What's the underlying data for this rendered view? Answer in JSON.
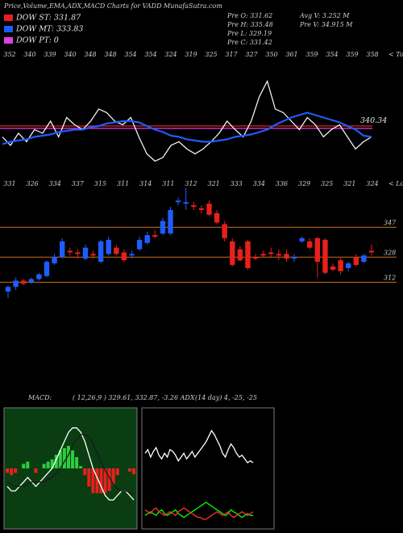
{
  "header": {
    "title": "Price,Volume,EMA,ADX,MACD Charts for VADD MunafaSutra.com",
    "legend": [
      {
        "label": "DOW ST: 331.87",
        "color": "#e8201c"
      },
      {
        "label": "DOW MT: 333.83",
        "color": "#1f5cff"
      },
      {
        "label": "DOW PT: 0",
        "color": "#e040e0"
      }
    ],
    "stats_left": [
      "Pre O: 331.62",
      "Pre H: 335.48",
      "Pre L: 329.19",
      "Pre C: 331.42"
    ],
    "stats_right": [
      "Avg V: 3.252 M",
      "Pre V: 34.915 M"
    ]
  },
  "chart_data": [
    {
      "type": "ema",
      "tops_label": "< Tops",
      "tops": [
        352,
        340,
        339,
        340,
        348,
        348,
        354,
        354,
        324,
        319,
        325,
        317,
        327,
        350,
        361,
        359,
        354,
        359,
        358
      ],
      "lows_label": "< Lows",
      "lows": [
        331,
        326,
        334,
        337,
        315,
        311,
        314,
        311,
        312,
        321,
        333,
        334,
        336,
        329,
        325,
        321,
        324
      ],
      "ylim": [
        300,
        380
      ],
      "levels": [
        {
          "value": 336,
          "color": "#e8201c"
        },
        {
          "value": 334,
          "color": "#e040e0"
        }
      ],
      "series": [
        {
          "color": "#ffffff",
          "width": 1.2,
          "values": [
            327,
            320,
            330,
            323,
            333,
            330,
            340,
            327,
            343,
            337,
            333,
            340,
            350,
            347,
            340,
            337,
            343,
            327,
            313,
            307,
            310,
            320,
            323,
            317,
            313,
            317,
            323,
            330,
            340,
            333,
            327,
            340,
            360,
            373,
            350,
            347,
            340,
            333,
            343,
            337,
            327,
            333,
            337,
            327,
            317,
            323,
            327
          ]
        },
        {
          "color": "#1f5cff",
          "width": 2.2,
          "values": [
            321,
            323,
            324,
            325,
            327,
            328,
            329,
            331,
            332,
            333,
            333,
            335,
            336,
            338,
            339,
            340,
            340,
            339,
            336,
            333,
            331,
            328,
            327,
            325,
            324,
            323,
            323,
            324,
            325,
            327,
            328,
            329,
            331,
            333,
            337,
            340,
            343,
            345,
            347,
            345,
            343,
            341,
            339,
            336,
            333,
            328,
            327
          ]
        }
      ],
      "price_label": 340.34
    },
    {
      "type": "candlestick",
      "ylim": [
        304,
        376
      ],
      "yticks": [
        347,
        328,
        312
      ],
      "tick_color": "#c76b1a",
      "up_color": "#1f5cff",
      "down_color": "#e8201c",
      "open": [
        306,
        309,
        313,
        312,
        314,
        316,
        324,
        328,
        332,
        331,
        327,
        330,
        325,
        330,
        334,
        331,
        329,
        333,
        337,
        342,
        343,
        343,
        363,
        362,
        361,
        359,
        362,
        356,
        349,
        338,
        333,
        338,
        328,
        330,
        331,
        330,
        330,
        327,
        338,
        338,
        340,
        339,
        322,
        326,
        321,
        328,
        325,
        332
      ],
      "high": [
        310,
        315,
        314,
        315,
        318,
        326,
        330,
        340,
        334,
        333,
        336,
        332,
        339,
        341,
        336,
        333,
        332,
        341,
        344,
        345,
        353,
        360,
        366,
        372,
        363,
        361,
        364,
        358,
        351,
        340,
        335,
        339,
        330,
        332,
        334,
        333,
        333,
        330,
        341,
        340,
        341,
        340,
        324,
        328,
        325,
        330,
        330,
        336
      ],
      "low": [
        302,
        307,
        310,
        311,
        313,
        315,
        323,
        327,
        329,
        327,
        326,
        327,
        324,
        329,
        329,
        325,
        327,
        332,
        336,
        340,
        342,
        342,
        361,
        358,
        358,
        356,
        354,
        349,
        338,
        322,
        325,
        320,
        326,
        328,
        328,
        326,
        325,
        325,
        337,
        333,
        315,
        317,
        319,
        317,
        319,
        322,
        324,
        329
      ],
      "close": [
        309,
        313,
        311,
        314,
        317,
        325,
        328,
        338,
        331,
        330,
        334,
        329,
        338,
        339,
        330,
        326,
        330,
        339,
        342,
        341,
        351,
        358,
        364,
        363,
        360,
        358,
        355,
        350,
        340,
        323,
        326,
        321,
        327,
        329,
        330,
        329,
        327,
        328,
        340,
        334,
        325,
        318,
        320,
        319,
        324,
        323,
        329,
        331
      ]
    },
    {
      "type": "macd",
      "label": "MACD:",
      "params": "( 12,26,9 ) 329.61, 332.87, -3.26 ADX",
      "ylim": [
        -12,
        12
      ],
      "background": "#0a3d12",
      "pos_color": "#2ecc40",
      "neg_color": "#e8201c",
      "histogram": [
        -1,
        -1.5,
        -1,
        0,
        1,
        1.5,
        0,
        -1,
        0,
        1,
        1.5,
        2,
        3,
        4,
        4.5,
        5,
        4,
        2.5,
        0.5,
        -1.5,
        -4,
        -5.5,
        -5.5,
        -5.5,
        -5.5,
        -5,
        -3.5,
        -1.5,
        0,
        0,
        -0.7,
        -1.3
      ],
      "series": [
        {
          "color": "#ffffff",
          "values": [
            -4,
            -5,
            -5,
            -4,
            -3,
            -2,
            -3,
            -4,
            -3,
            -2,
            -1,
            0,
            2,
            4,
            6,
            8,
            9,
            9,
            8,
            6,
            3,
            0,
            -2,
            -4,
            -6,
            -7,
            -7,
            -6,
            -5,
            -5,
            -6,
            -7
          ]
        },
        {
          "color": "#1a1a1a",
          "values": [
            -3,
            -3.5,
            -4,
            -4,
            -4,
            -3.5,
            -3,
            -3,
            -3,
            -3,
            -2.5,
            -2,
            -1,
            0,
            1.5,
            3,
            5,
            6.5,
            7.5,
            7.5,
            7,
            5.5,
            3.5,
            1.5,
            -0.5,
            -2,
            -3.5,
            -4.5,
            -5,
            -5,
            -5.3,
            -5.7
          ]
        }
      ]
    },
    {
      "type": "adx",
      "label": "(14 day) 4, -25, -25",
      "ylim": [
        0,
        60
      ],
      "background": "#000000",
      "series": [
        {
          "color": "#ffffff",
          "values": [
            38,
            40,
            36,
            39,
            41,
            37,
            35,
            38,
            36,
            40,
            39,
            37,
            34,
            36,
            38,
            35,
            37,
            39,
            36,
            38,
            40,
            42,
            44,
            47,
            50,
            48,
            45,
            42,
            38,
            36,
            40,
            43,
            41,
            38,
            36,
            37,
            35,
            33,
            34,
            33
          ]
        },
        {
          "color": "#00ff00",
          "values": [
            5,
            6,
            7,
            6,
            5,
            7,
            8,
            6,
            5,
            6,
            7,
            8,
            6,
            5,
            4,
            5,
            6,
            7,
            8,
            9,
            10,
            11,
            12,
            11,
            10,
            9,
            8,
            7,
            6,
            5,
            6,
            8,
            7,
            6,
            5,
            4,
            5,
            6,
            5,
            5
          ]
        },
        {
          "color": "#ff3030",
          "values": [
            8,
            7,
            6,
            8,
            9,
            7,
            6,
            5,
            6,
            7,
            6,
            5,
            7,
            8,
            9,
            8,
            7,
            6,
            5,
            4,
            4,
            3,
            3,
            4,
            5,
            6,
            7,
            6,
            5,
            6,
            7,
            5,
            4,
            5,
            6,
            7,
            6,
            5,
            6,
            7
          ]
        }
      ]
    }
  ]
}
